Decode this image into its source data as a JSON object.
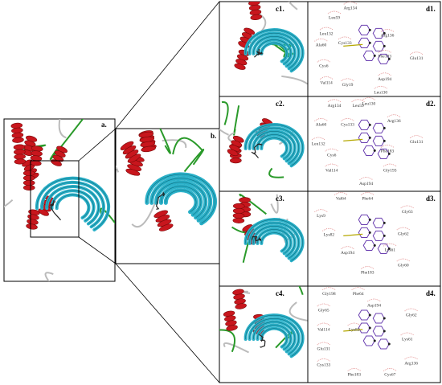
{
  "panels": {
    "a": {
      "label": "a."
    },
    "b": {
      "label": "b."
    },
    "c": [
      {
        "label": "c1."
      },
      {
        "label": "c2."
      },
      {
        "label": "c3."
      },
      {
        "label": "c4."
      }
    ],
    "d": [
      {
        "label": "d1.",
        "residues": [
          "Arg134",
          "Leu59",
          "Leu132",
          "Arg136",
          "Ala60",
          "Cys133",
          "Phe183",
          "Glu131",
          "Cys6",
          "Val114",
          "Gly19",
          "Asp194",
          "Leu130"
        ]
      },
      {
        "label": "d2.",
        "residues": [
          "Arg134",
          "Leu59",
          "Ala60",
          "Cys133",
          "Arg136",
          "Leu132",
          "Glu131",
          "Cys6",
          "Phe183",
          "Val114",
          "Gly193",
          "Asp194",
          "Leu130"
        ]
      },
      {
        "label": "d3.",
        "residues": [
          "Val64",
          "Phe64",
          "Lys9",
          "Gly63",
          "Lys82",
          "Gly62",
          "Asp194",
          "Lys61",
          "Gly60",
          "Phe183"
        ]
      },
      {
        "label": "d4.",
        "residues": [
          "Gly198",
          "Phe64",
          "Gly65",
          "Asp194",
          "Gly62",
          "Val114",
          "Lys82",
          "Lys61",
          "Glu131",
          "Cys133",
          "Phe183",
          "Arg136",
          "Cys67"
        ]
      }
    ]
  }
}
